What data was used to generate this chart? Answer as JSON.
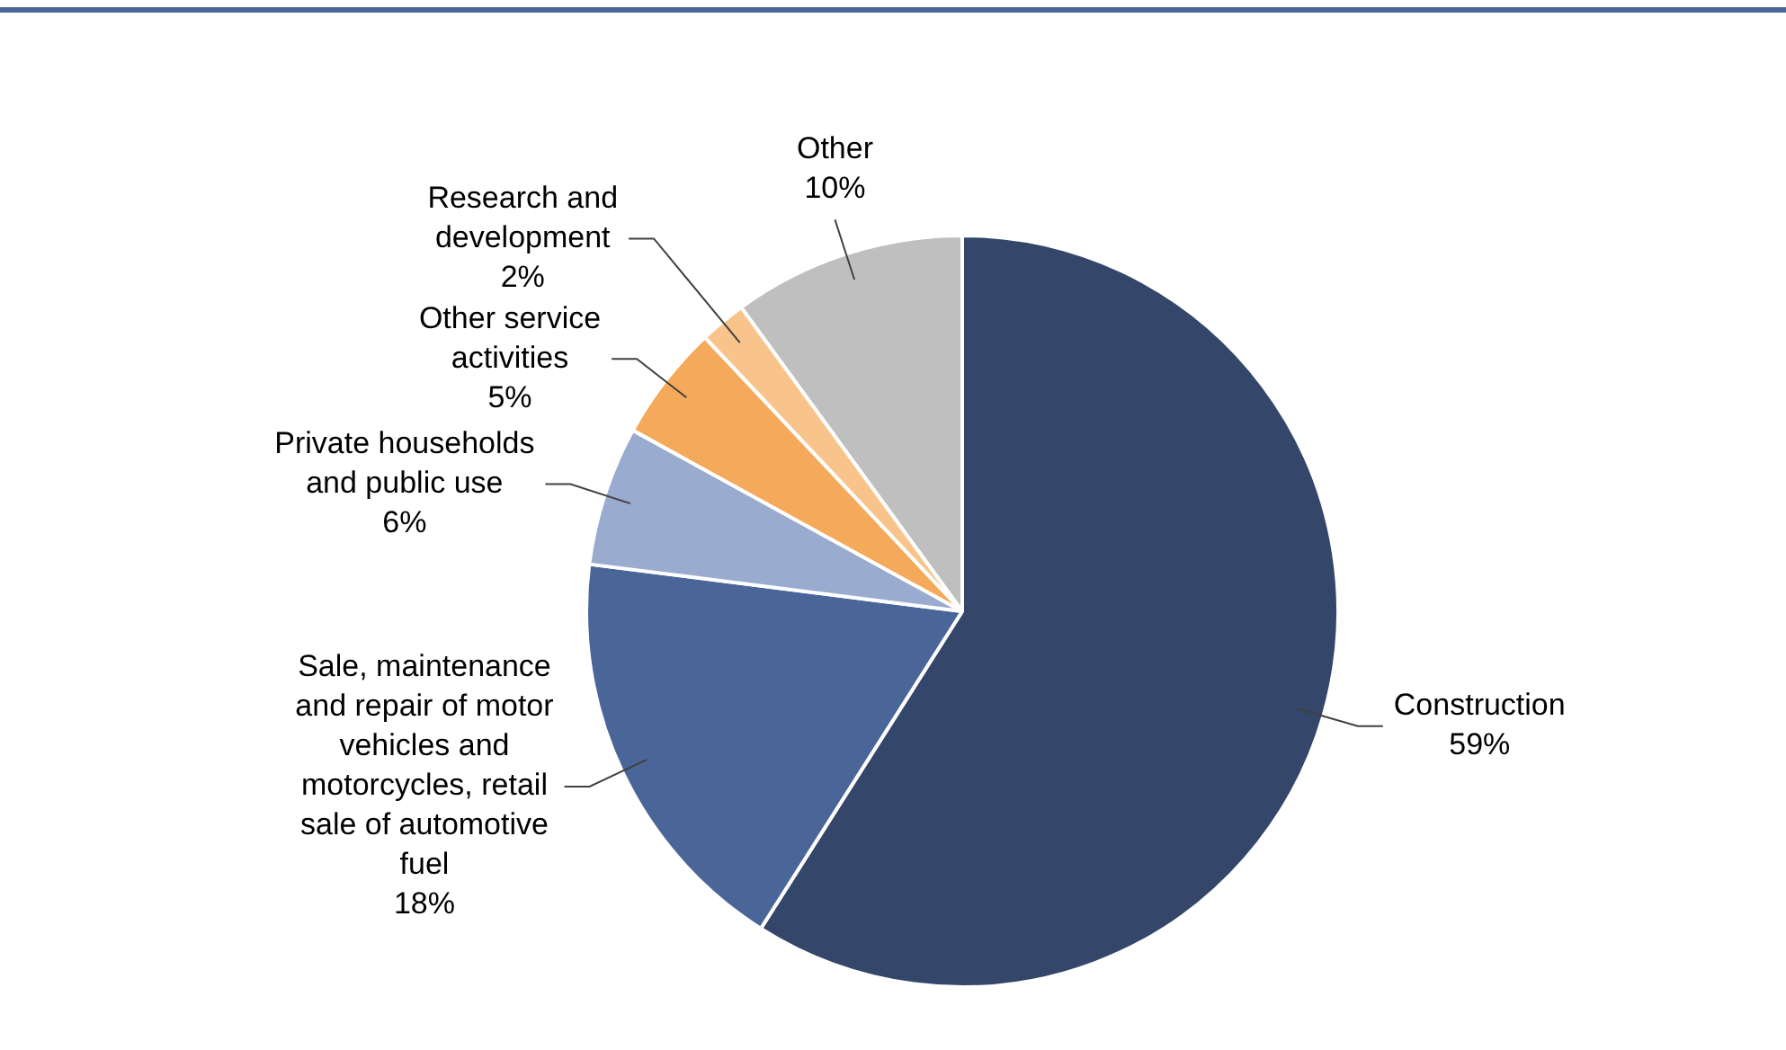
{
  "chart_data": {
    "type": "pie",
    "categories": [
      "Construction",
      "Sale, maintenance and repair of motor vehicles and motorcycles, retail sale of automotive fuel",
      "Private households and public use",
      "Other service activities",
      "Research and development",
      "Other"
    ],
    "values": [
      59,
      18,
      6,
      5,
      2,
      10
    ],
    "value_labels": [
      "59%",
      "18%",
      "6%",
      "5%",
      "2%",
      "10%"
    ],
    "colors": [
      "#34466a",
      "#4a6699",
      "#9aabd0",
      "#f5a95a",
      "#f9c48c",
      "#bfbfbf"
    ],
    "legend": false
  }
}
